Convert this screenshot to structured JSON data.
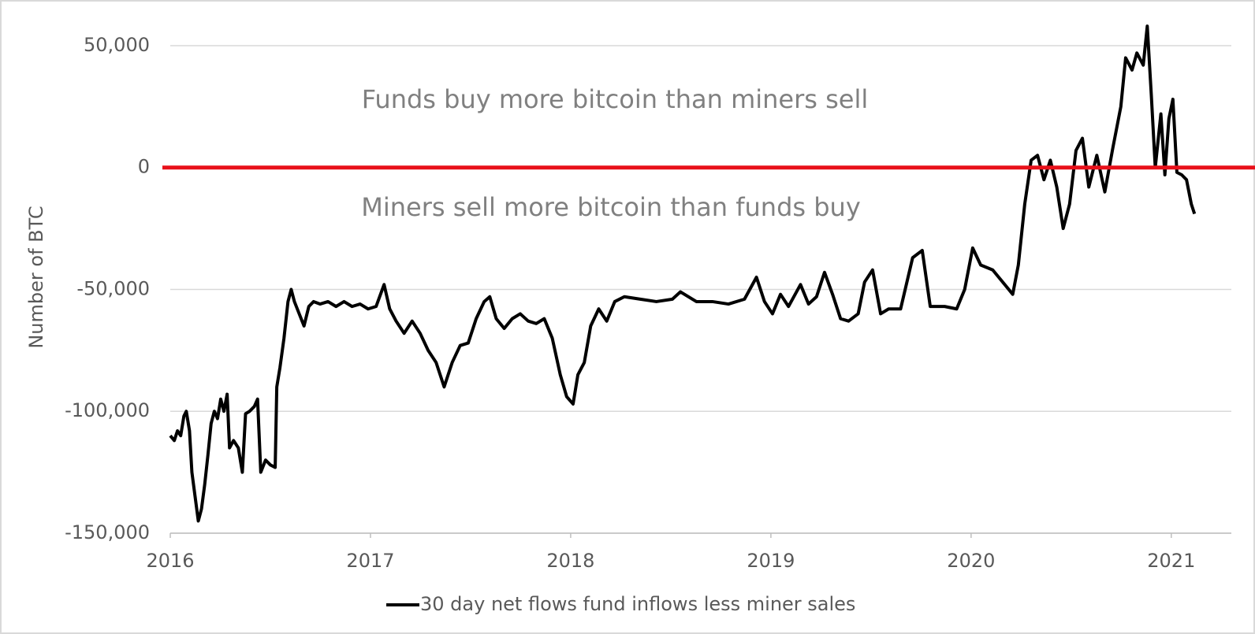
{
  "chart_data": {
    "type": "line",
    "y_axis_label": "Number of BTC",
    "annotations": [
      "Funds buy more bitcoin than miners sell",
      "Miners sell more bitcoin than funds buy"
    ],
    "reference_line": {
      "value": 0,
      "color": "#e8101a"
    },
    "xlim": [
      2016,
      2021.3
    ],
    "xticks": [
      2016,
      2017,
      2018,
      2019,
      2020,
      2021
    ],
    "ylim": [
      -150000,
      60000
    ],
    "yticks": [
      {
        "value": -150000,
        "label": "-150,000"
      },
      {
        "value": -100000,
        "label": "-100,000"
      },
      {
        "value": -50000,
        "label": "-50,000"
      },
      0,
      {
        "value": 50000,
        "label": "50,000"
      }
    ],
    "grid": true,
    "legend": "bottom",
    "x": [
      2016.0,
      2016.02,
      2016.036,
      2016.052,
      2016.068,
      2016.08,
      2016.096,
      2016.108,
      2016.124,
      2016.14,
      2016.156,
      2016.172,
      2016.188,
      2016.204,
      2016.22,
      2016.236,
      2016.252,
      2016.268,
      2016.284,
      2016.296,
      2016.316,
      2016.34,
      2016.36,
      2016.376,
      2016.396,
      2016.42,
      2016.436,
      2016.452,
      2016.476,
      2016.5,
      2016.524,
      2016.532,
      2016.548,
      2016.568,
      2016.588,
      2016.604,
      2016.62,
      2016.644,
      2016.668,
      2016.692,
      2016.716,
      2016.748,
      2016.788,
      2016.828,
      2016.868,
      2016.908,
      2016.948,
      2016.988,
      2017.028,
      2017.068,
      2017.096,
      2017.128,
      2017.168,
      2017.208,
      2017.248,
      2017.288,
      2017.328,
      2017.368,
      2017.408,
      2017.448,
      2017.488,
      2017.528,
      2017.568,
      2017.596,
      2017.628,
      2017.668,
      2017.708,
      2017.748,
      2017.788,
      2017.828,
      2017.868,
      2017.908,
      2017.948,
      2017.98,
      2018.012,
      2018.036,
      2018.068,
      2018.1,
      2018.14,
      2018.18,
      2018.22,
      2018.268,
      2018.348,
      2018.428,
      2018.508,
      2018.548,
      2018.628,
      2018.708,
      2018.788,
      2018.868,
      2018.928,
      2018.968,
      2019.008,
      2019.048,
      2019.088,
      2019.148,
      2019.188,
      2019.228,
      2019.268,
      2019.308,
      2019.348,
      2019.388,
      2019.436,
      2019.468,
      2019.508,
      2019.548,
      2019.588,
      2019.648,
      2019.708,
      2019.756,
      2019.796,
      2019.868,
      2019.928,
      2019.968,
      2020.008,
      2020.048,
      2020.108,
      2020.168,
      2020.208,
      2020.236,
      2020.268,
      2020.3,
      2020.332,
      2020.364,
      2020.396,
      2020.428,
      2020.46,
      2020.492,
      2020.524,
      2020.556,
      2020.588,
      2020.628,
      2020.668,
      2020.708,
      2020.748,
      2020.772,
      2020.804,
      2020.828,
      2020.86,
      2020.88,
      2020.9,
      2020.92,
      2020.948,
      2020.968,
      2020.988,
      2021.008,
      2021.028,
      2021.052,
      2021.076,
      2021.1,
      2021.116
    ],
    "series": [
      {
        "name": "30 day net flows fund inflows less miner sales",
        "color": "#000000",
        "values": [
          -110000,
          -112000,
          -108000,
          -110000,
          -102000,
          -100000,
          -108000,
          -125000,
          -135000,
          -145000,
          -140000,
          -130000,
          -118000,
          -105000,
          -100000,
          -103000,
          -95000,
          -100000,
          -93000,
          -115000,
          -112000,
          -115000,
          -125000,
          -101000,
          -100000,
          -98000,
          -95000,
          -125000,
          -120000,
          -122000,
          -123000,
          -90000,
          -82000,
          -70000,
          -55000,
          -50000,
          -55000,
          -60000,
          -65000,
          -57000,
          -55000,
          -56000,
          -55000,
          -57000,
          -55000,
          -57000,
          -56000,
          -58000,
          -57000,
          -48000,
          -58000,
          -63000,
          -68000,
          -63000,
          -68000,
          -75000,
          -80000,
          -90000,
          -80000,
          -73000,
          -72000,
          -62000,
          -55000,
          -53000,
          -62000,
          -66000,
          -62000,
          -60000,
          -63000,
          -64000,
          -62000,
          -70000,
          -85000,
          -94000,
          -97000,
          -85000,
          -80000,
          -65000,
          -58000,
          -63000,
          -55000,
          -53000,
          -54000,
          -55000,
          -54000,
          -51000,
          -55000,
          -55000,
          -56000,
          -54000,
          -45000,
          -55000,
          -60000,
          -52000,
          -57000,
          -48000,
          -56000,
          -53000,
          -43000,
          -52000,
          -62000,
          -63000,
          -60000,
          -47000,
          -42000,
          -60000,
          -58000,
          -58000,
          -37000,
          -34000,
          -57000,
          -57000,
          -58000,
          -50000,
          -33000,
          -40000,
          -42000,
          -48000,
          -52000,
          -40000,
          -15000,
          3000,
          5000,
          -5000,
          3000,
          -8000,
          -25000,
          -15000,
          7000,
          12000,
          -8000,
          5000,
          -10000,
          8000,
          25000,
          45000,
          40000,
          47000,
          42000,
          58000,
          30000,
          0,
          22000,
          -3000,
          20000,
          28000,
          -2000,
          -3000,
          -5000,
          -15000,
          -19000
        ]
      }
    ]
  }
}
